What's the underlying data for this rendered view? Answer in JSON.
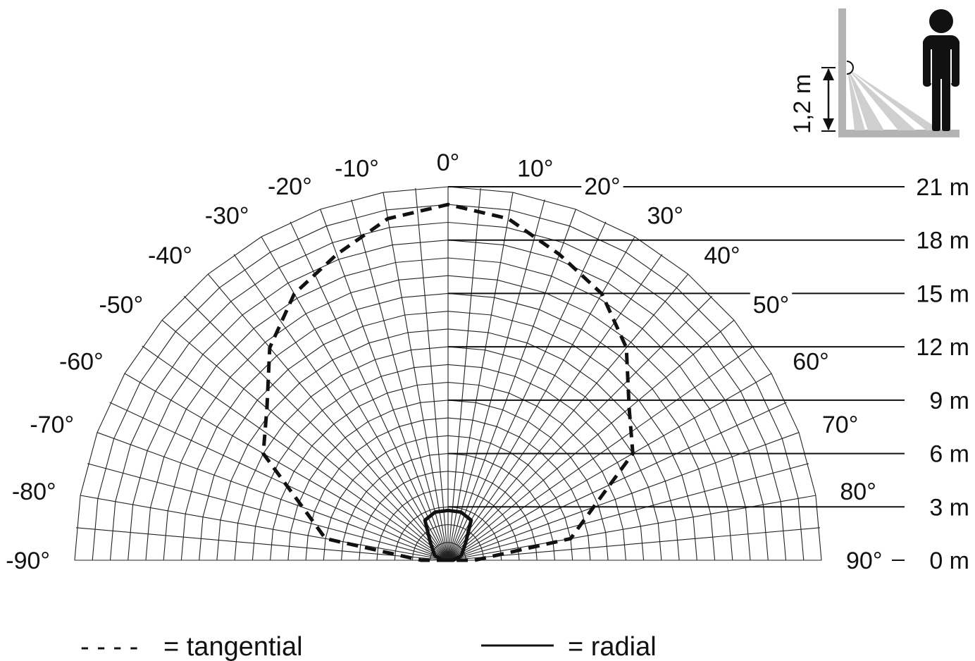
{
  "angle_labels": {
    "left": [
      "-90°",
      "-80°",
      "-70°",
      "-60°",
      "-50°",
      "-40°",
      "-30°",
      "-20°",
      "-10°"
    ],
    "center": "0°",
    "right": [
      "10°",
      "20°",
      "30°",
      "40°",
      "50°",
      "60°",
      "70°",
      "80°",
      "90°"
    ]
  },
  "distance_labels": [
    "0 m",
    "3 m",
    "6 m",
    "9 m",
    "12 m",
    "15 m",
    "18 m",
    "21 m"
  ],
  "mounting_height_label": "1,2 m",
  "legend": {
    "tangential_symbol": "- - - -",
    "tangential_label": "= tangential",
    "radial_label": "= radial"
  },
  "detection_zones": {
    "tangential": [
      {
        "angle": -90,
        "distance_m": 1.5
      },
      {
        "angle": -80,
        "distance_m": 7.0
      },
      {
        "angle": -70,
        "distance_m": 8.7
      },
      {
        "angle": -60,
        "distance_m": 12.0
      },
      {
        "angle": -50,
        "distance_m": 13.3
      },
      {
        "angle": -40,
        "distance_m": 15.6
      },
      {
        "angle": -30,
        "distance_m": 17.3
      },
      {
        "angle": -20,
        "distance_m": 18.3
      },
      {
        "angle": -10,
        "distance_m": 19.5
      },
      {
        "angle": 0,
        "distance_m": 20.0
      },
      {
        "angle": 10,
        "distance_m": 19.5
      },
      {
        "angle": 20,
        "distance_m": 18.3
      },
      {
        "angle": 30,
        "distance_m": 17.3
      },
      {
        "angle": 40,
        "distance_m": 15.6
      },
      {
        "angle": 50,
        "distance_m": 13.3
      },
      {
        "angle": 60,
        "distance_m": 12.0
      },
      {
        "angle": 70,
        "distance_m": 8.7
      },
      {
        "angle": 80,
        "distance_m": 7.0
      },
      {
        "angle": 90,
        "distance_m": 1.5
      }
    ],
    "radial": [
      {
        "angle": -90,
        "distance_m": 0.3
      },
      {
        "angle": -70,
        "distance_m": 0.8
      },
      {
        "angle": -45,
        "distance_m": 1.4
      },
      {
        "angle": -30,
        "distance_m": 2.6
      },
      {
        "angle": -15,
        "distance_m": 2.8
      },
      {
        "angle": 0,
        "distance_m": 2.8
      },
      {
        "angle": 15,
        "distance_m": 2.8
      },
      {
        "angle": 30,
        "distance_m": 2.6
      },
      {
        "angle": 45,
        "distance_m": 1.4
      },
      {
        "angle": 70,
        "distance_m": 0.8
      },
      {
        "angle": 90,
        "distance_m": 0.3
      }
    ]
  }
}
